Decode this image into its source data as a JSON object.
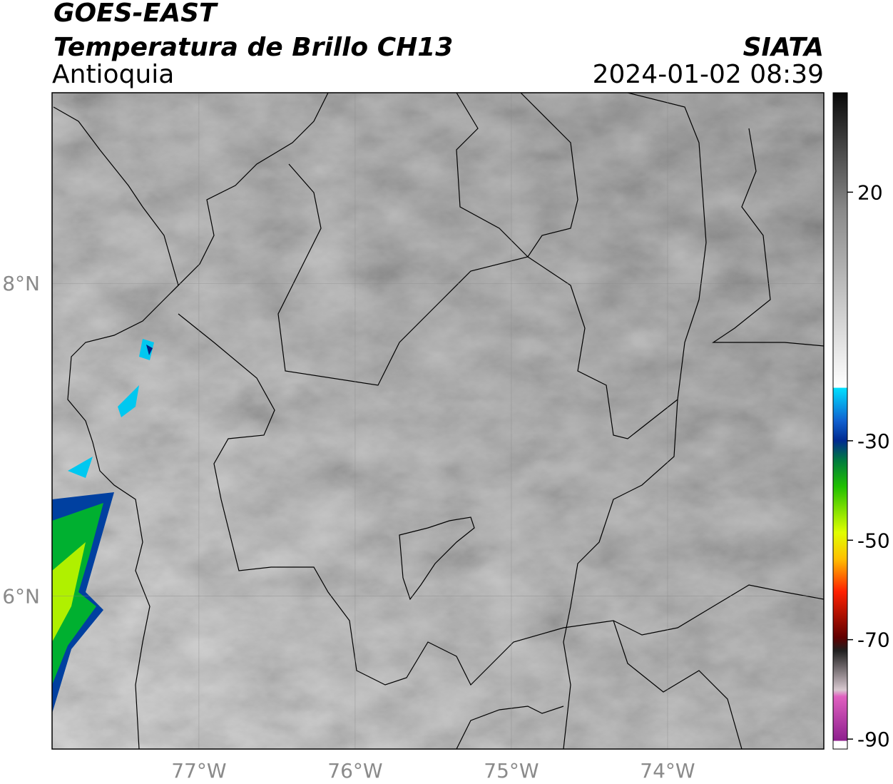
{
  "header": {
    "title": "GOES-EAST",
    "subtitle": "Temperatura de Brillo CH13",
    "source": "SIATA",
    "region": "Antioquia",
    "datetime": "2024-01-02 08:39"
  },
  "map": {
    "xlim": [
      -77.94,
      -73.0
    ],
    "ylim": [
      5.02,
      9.22
    ],
    "xticks": [
      {
        "value": -77,
        "label": "77°W"
      },
      {
        "value": -76,
        "label": "76°W"
      },
      {
        "value": -75,
        "label": "75°W"
      },
      {
        "value": -74,
        "label": "74°W"
      }
    ],
    "yticks": [
      {
        "value": 8,
        "label": "8°N"
      },
      {
        "value": 6,
        "label": "6°N"
      }
    ]
  },
  "colorbar": {
    "lim": [
      -92,
      40
    ],
    "ticks": [
      20,
      -30,
      -50,
      -70,
      -90
    ]
  }
}
